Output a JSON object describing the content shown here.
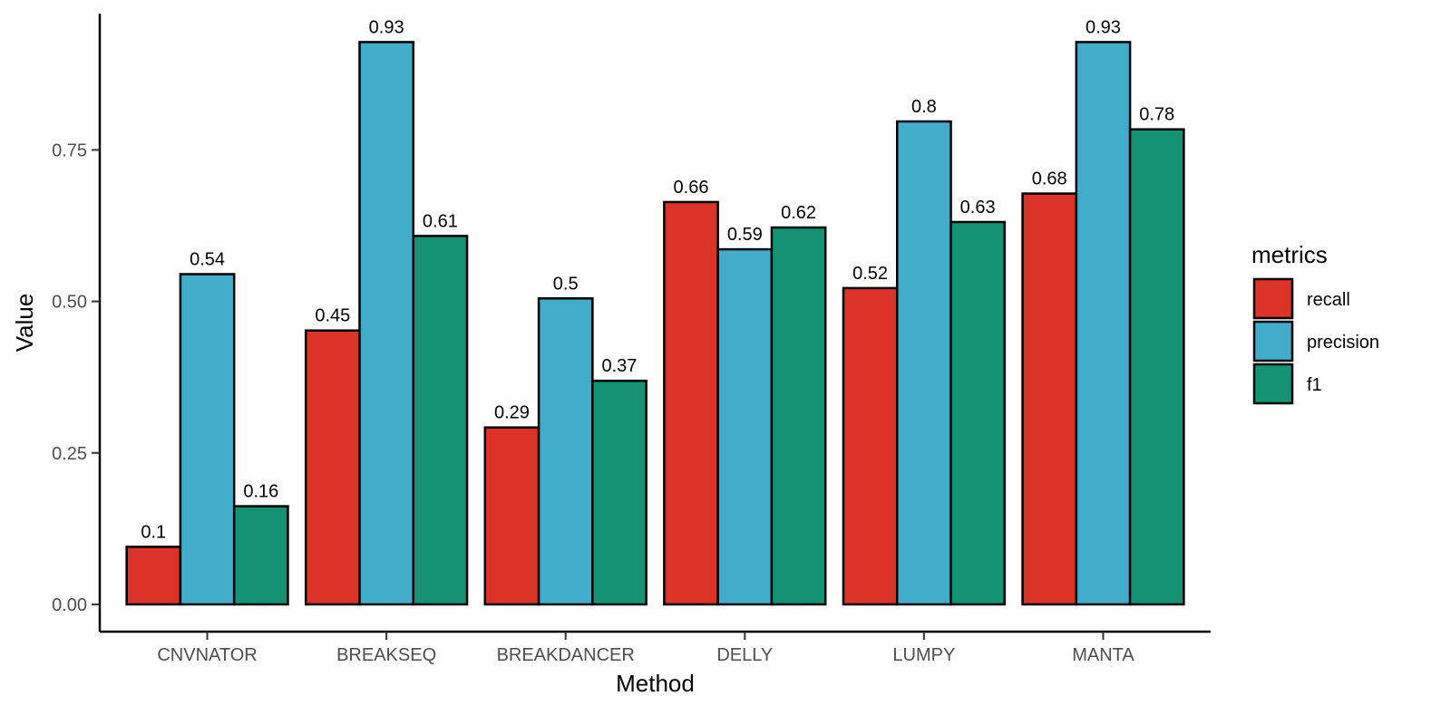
{
  "chart_data": {
    "type": "bar",
    "categories": [
      "CNVNATOR",
      "BREAKSEQ",
      "BREAKDANCER",
      "DELLY",
      "LUMPY",
      "MANTA"
    ],
    "series": [
      {
        "name": "recall",
        "color": "#DC3328",
        "values": [
          0.095,
          0.452,
          0.292,
          0.664,
          0.522,
          0.678
        ],
        "labels": [
          "0.1",
          "0.45",
          "0.29",
          "0.66",
          "0.52",
          "0.68"
        ]
      },
      {
        "name": "precision",
        "color": "#42ACCB",
        "values": [
          0.545,
          0.928,
          0.505,
          0.586,
          0.797,
          0.928
        ],
        "labels": [
          "0.54",
          "0.93",
          "0.5",
          "0.59",
          "0.8",
          "0.93"
        ]
      },
      {
        "name": "f1",
        "color": "#139373",
        "values": [
          0.162,
          0.608,
          0.369,
          0.622,
          0.631,
          0.784
        ],
        "labels": [
          "0.16",
          "0.61",
          "0.37",
          "0.62",
          "0.63",
          "0.78"
        ]
      }
    ],
    "xlabel": "Method",
    "ylabel": "Value",
    "ylim": [
      -0.045,
      0.975
    ],
    "yticks": [
      0,
      0.25,
      0.5,
      0.75
    ],
    "ytick_labels": [
      "0.00",
      "0.25",
      "0.50",
      "0.75"
    ],
    "legend": {
      "title": "metrics",
      "position": "right"
    },
    "grid": false
  }
}
